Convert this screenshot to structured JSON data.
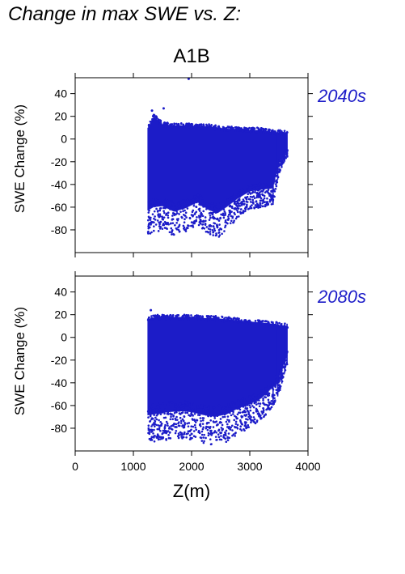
{
  "page": {
    "title": "Change in max SWE vs. Z:"
  },
  "chart_data": {
    "type": "scatter",
    "title": "A1B",
    "xlabel": "Z(m)",
    "ylabel": "SWE Change (%)",
    "xlim": [
      0,
      4000
    ],
    "ylim": [
      -100,
      54
    ],
    "xticks": [
      0,
      1000,
      2000,
      3000,
      4000
    ],
    "yticks": [
      40,
      20,
      0,
      -20,
      -40,
      -60,
      -80
    ],
    "marker_color": "#1c1cc8",
    "panels": [
      {
        "period": "2040s",
        "x_range": [
          1250,
          3650
        ],
        "envelope": [
          {
            "x": 1250,
            "max": 12,
            "min": -84
          },
          {
            "x": 1350,
            "max": 22,
            "min": -83
          },
          {
            "x": 1500,
            "max": 15,
            "min": -80
          },
          {
            "x": 1700,
            "max": 14,
            "min": -86
          },
          {
            "x": 1900,
            "max": 14,
            "min": -82
          },
          {
            "x": 2100,
            "max": 13,
            "min": -75
          },
          {
            "x": 2300,
            "max": 13,
            "min": -84
          },
          {
            "x": 2450,
            "max": 12,
            "min": -87
          },
          {
            "x": 2600,
            "max": 11,
            "min": -80
          },
          {
            "x": 2800,
            "max": 11,
            "min": -70
          },
          {
            "x": 3000,
            "max": 10,
            "min": -62
          },
          {
            "x": 3200,
            "max": 10,
            "min": -60
          },
          {
            "x": 3400,
            "max": 8,
            "min": -58
          },
          {
            "x": 3500,
            "max": 8,
            "min": -30
          },
          {
            "x": 3650,
            "max": 7,
            "min": -15
          }
        ],
        "outliers": [
          {
            "x": 1950,
            "y": 53
          },
          {
            "x": 1520,
            "y": 27
          },
          {
            "x": 1320,
            "y": 25
          }
        ]
      },
      {
        "period": "2080s",
        "x_range": [
          1250,
          3650
        ],
        "envelope": [
          {
            "x": 1250,
            "max": 18,
            "min": -93
          },
          {
            "x": 1400,
            "max": 20,
            "min": -92
          },
          {
            "x": 1600,
            "max": 20,
            "min": -90
          },
          {
            "x": 1800,
            "max": 20,
            "min": -89
          },
          {
            "x": 2000,
            "max": 20,
            "min": -90
          },
          {
            "x": 2200,
            "max": 19,
            "min": -93
          },
          {
            "x": 2400,
            "max": 19,
            "min": -95
          },
          {
            "x": 2600,
            "max": 18,
            "min": -92
          },
          {
            "x": 2800,
            "max": 17,
            "min": -85
          },
          {
            "x": 3000,
            "max": 16,
            "min": -80
          },
          {
            "x": 3200,
            "max": 15,
            "min": -73
          },
          {
            "x": 3400,
            "max": 14,
            "min": -60
          },
          {
            "x": 3500,
            "max": 13,
            "min": -50
          },
          {
            "x": 3650,
            "max": 12,
            "min": -22
          }
        ],
        "outliers": [
          {
            "x": 1300,
            "y": 24
          }
        ]
      }
    ]
  }
}
